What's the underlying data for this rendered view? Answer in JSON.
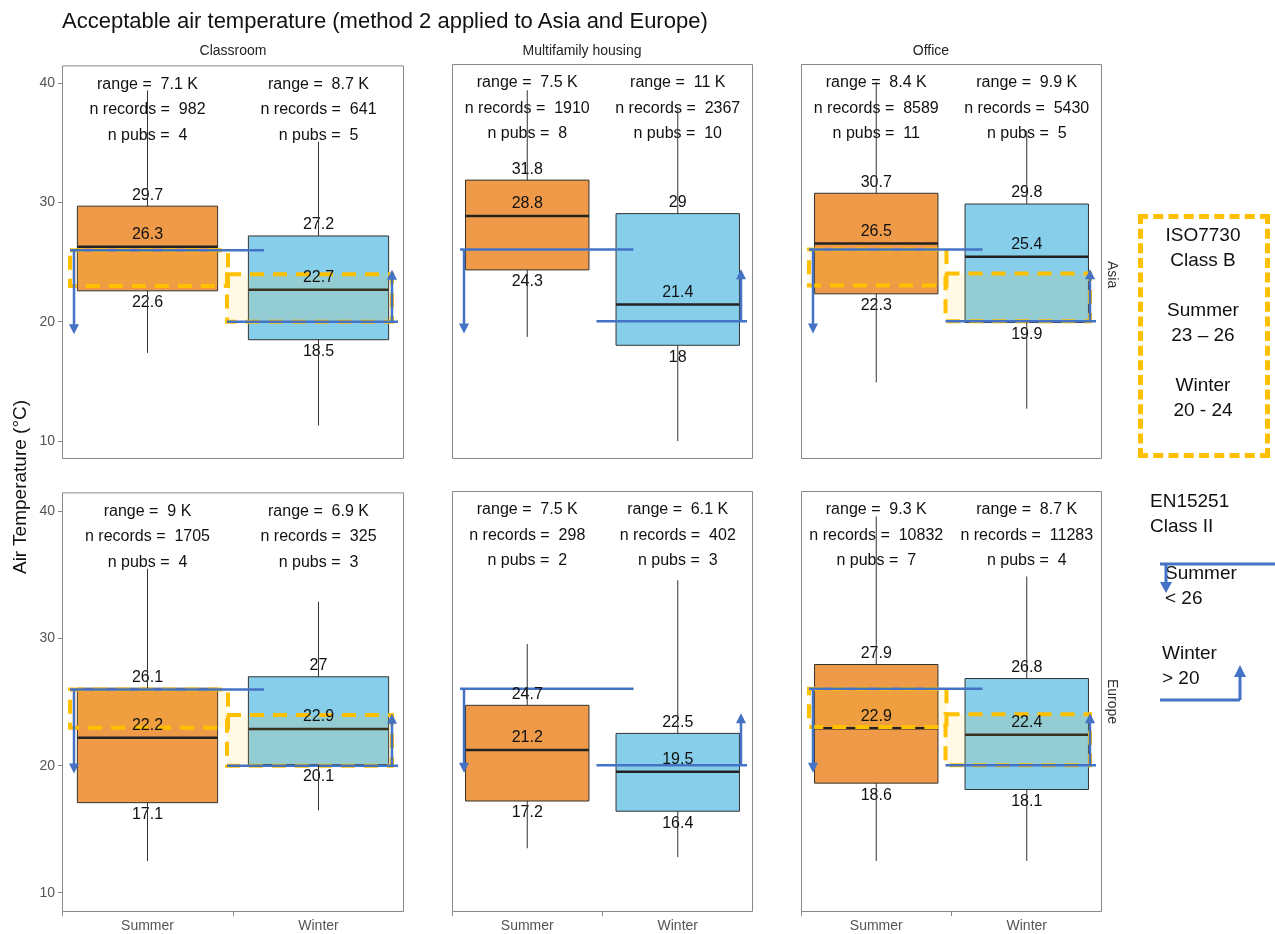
{
  "chart_data": [
    {
      "type": "other",
      "title": "Acceptable air temperature (method 2 applied to Asia and Europe)",
      "ylabel": "Air Temperature (°C)",
      "annotations": [
        "ISO7730\nClass B\n\nSummer\n23 – 26\n\nWinter\n20 - 24",
        "EN15251\nClass II",
        "Summer\n< 26",
        "Winter\n> 20"
      ]
    },
    {
      "type": "box",
      "subtitle": "Classroom",
      "categories": [
        "Summer",
        "Winter"
      ],
      "colors": [
        "#ee9a48",
        "#87ceeb"
      ],
      "boxes": [
        {
          "low": 17.4,
          "q1": 22.6,
          "median": 26.3,
          "q3": 29.7,
          "high": 39.4
        },
        {
          "low": 11.3,
          "q1": 18.5,
          "median": 22.7,
          "q3": 27.2,
          "high": 35.1
        }
      ],
      "annotations": [
        "range =  7.1 K\nn records =  982\nn pubs =  4",
        "range =  8.7 K\nn records =  641\nn pubs =  5",
        {
          "text": "29.7",
          "x": "Summer",
          "y": 29.7
        },
        {
          "text": "26.3",
          "x": "Summer",
          "y": 26.3
        },
        {
          "text": "22.6",
          "x": "Summer",
          "y": 22.6
        },
        {
          "text": "27.2",
          "x": "Winter",
          "y": 27.2
        },
        {
          "text": "22.7",
          "x": "Winter",
          "y": 22.7
        },
        {
          "text": "18.5",
          "x": "Winter",
          "y": 18.5
        }
      ],
      "ref_lines": [
        {
          "axis": "y",
          "value": 26,
          "color": "#4472c4"
        },
        {
          "axis": "y",
          "value": 20,
          "color": "#4472c4"
        }
      ],
      "bands": [
        {
          "axis": "y",
          "from": 23,
          "to": 26,
          "color": "#ffc000"
        },
        {
          "axis": "y",
          "from": 20,
          "to": 24,
          "color": "#ffc000"
        }
      ],
      "ylim": [
        8.5,
        41.5
      ],
      "yticks": [
        10,
        20,
        30,
        40
      ],
      "tick_labels": "y"
    },
    {
      "type": "box",
      "subtitle": "Multifamily housing",
      "categories": [
        "Summer",
        "Winter"
      ],
      "colors": [
        "#ee9a48",
        "#87ceeb"
      ],
      "boxes": [
        {
          "low": 18.7,
          "q1": 24.3,
          "median": 28.8,
          "q3": 31.8,
          "high": 39.3
        },
        {
          "low": 10.0,
          "q1": 18,
          "median": 21.4,
          "q3": 29,
          "high": 37.7
        }
      ],
      "annotations": [
        "range =  7.5 K\nn records =  1910\nn pubs =  8",
        "range =  11 K\nn records =  2367\nn pubs =  10",
        {
          "text": "31.8",
          "x": "Summer",
          "y": 31.8
        },
        {
          "text": "28.8",
          "x": "Summer",
          "y": 28.8
        },
        {
          "text": "24.3",
          "x": "Summer",
          "y": 24.3
        },
        {
          "text": "29",
          "x": "Winter",
          "y": 29
        },
        {
          "text": "21.4",
          "x": "Winter",
          "y": 21.4
        },
        {
          "text": "18",
          "x": "Winter",
          "y": 18
        }
      ],
      "ref_lines": [
        {
          "axis": "y",
          "value": 26,
          "color": "#4472c4"
        },
        {
          "axis": "y",
          "value": 20,
          "color": "#4472c4"
        }
      ],
      "ylim": [
        8.5,
        41.5
      ],
      "yticks": [
        10,
        20,
        30,
        40
      ],
      "tick_labels": false
    },
    {
      "type": "box",
      "subtitle": "Office",
      "y2label": "Asia",
      "categories": [
        "Summer",
        "Winter"
      ],
      "colors": [
        "#ee9a48",
        "#87ceeb"
      ],
      "boxes": [
        {
          "low": 14.9,
          "q1": 22.3,
          "median": 26.5,
          "q3": 30.7,
          "high": 40.0
        },
        {
          "low": 12.7,
          "q1": 19.9,
          "median": 25.4,
          "q3": 29.8,
          "high": 35.9
        }
      ],
      "annotations": [
        "range =  8.4 K\nn records =  8589\nn pubs =  11",
        "range =  9.9 K\nn records =  5430\nn pubs =  5",
        {
          "text": "30.7",
          "x": "Summer",
          "y": 30.7
        },
        {
          "text": "26.5",
          "x": "Summer",
          "y": 26.5
        },
        {
          "text": "22.3",
          "x": "Summer",
          "y": 22.3
        },
        {
          "text": "29.8",
          "x": "Winter",
          "y": 29.8
        },
        {
          "text": "25.4",
          "x": "Winter",
          "y": 25.4
        },
        {
          "text": "19.9",
          "x": "Winter",
          "y": 19.9
        }
      ],
      "ref_lines": [
        {
          "axis": "y",
          "value": 26,
          "color": "#4472c4"
        },
        {
          "axis": "y",
          "value": 20,
          "color": "#4472c4"
        }
      ],
      "bands": [
        {
          "axis": "y",
          "from": 23,
          "to": 26,
          "color": "#ffc000"
        },
        {
          "axis": "y",
          "from": 20,
          "to": 24,
          "color": "#ffc000"
        }
      ],
      "ylim": [
        8.5,
        41.5
      ],
      "yticks": [
        10,
        20,
        30,
        40
      ],
      "tick_labels": false
    },
    {
      "type": "box",
      "categories": [
        "Summer",
        "Winter"
      ],
      "colors": [
        "#ee9a48",
        "#87ceeb"
      ],
      "boxes": [
        {
          "low": 12.5,
          "q1": 17.1,
          "median": 22.2,
          "q3": 26.1,
          "high": 35.5
        },
        {
          "low": 16.5,
          "q1": 20.1,
          "median": 22.9,
          "q3": 27,
          "high": 32.9
        }
      ],
      "annotations": [
        "range =  9 K\nn records =  1705\nn pubs =  4",
        "range =  6.9 K\nn records =  325\nn pubs =  3",
        {
          "text": "26.1",
          "x": "Summer",
          "y": 26.1
        },
        {
          "text": "22.2",
          "x": "Summer",
          "y": 22.2
        },
        {
          "text": "17.1",
          "x": "Summer",
          "y": 17.1
        },
        {
          "text": "27",
          "x": "Winter",
          "y": 27
        },
        {
          "text": "22.9",
          "x": "Winter",
          "y": 22.9
        },
        {
          "text": "20.1",
          "x": "Winter",
          "y": 20.1
        }
      ],
      "ref_lines": [
        {
          "axis": "y",
          "value": 26,
          "color": "#4472c4"
        },
        {
          "axis": "y",
          "value": 20,
          "color": "#4472c4"
        }
      ],
      "bands": [
        {
          "axis": "y",
          "from": 23,
          "to": 26,
          "color": "#ffc000"
        },
        {
          "axis": "y",
          "from": 20,
          "to": 24,
          "color": "#ffc000"
        }
      ],
      "ylim": [
        8.5,
        41.5
      ],
      "yticks": [
        10,
        20,
        30,
        40
      ]
    },
    {
      "type": "box",
      "categories": [
        "Summer",
        "Winter"
      ],
      "colors": [
        "#ee9a48",
        "#87ceeb"
      ],
      "boxes": [
        {
          "low": 13.5,
          "q1": 17.2,
          "median": 21.2,
          "q3": 24.7,
          "high": 29.5
        },
        {
          "low": 12.8,
          "q1": 16.4,
          "median": 19.5,
          "q3": 22.5,
          "high": 34.5
        }
      ],
      "annotations": [
        "range =  7.5 K\nn records =  298\nn pubs =  2",
        "range =  6.1 K\nn records =  402\nn pubs =  3",
        {
          "text": "24.7",
          "x": "Summer",
          "y": 24.7
        },
        {
          "text": "21.2",
          "x": "Summer",
          "y": 21.2
        },
        {
          "text": "17.2",
          "x": "Summer",
          "y": 17.2
        },
        {
          "text": "22.5",
          "x": "Winter",
          "y": 22.5
        },
        {
          "text": "19.5",
          "x": "Winter",
          "y": 19.5
        },
        {
          "text": "16.4",
          "x": "Winter",
          "y": 16.4
        }
      ],
      "ref_lines": [
        {
          "axis": "y",
          "value": 26,
          "color": "#4472c4"
        },
        {
          "axis": "y",
          "value": 20,
          "color": "#4472c4"
        }
      ],
      "ylim": [
        8.5,
        41.5
      ],
      "yticks": [
        10,
        20,
        30,
        40
      ],
      "tick_labels": "x"
    },
    {
      "type": "box",
      "y2label": "Europe",
      "categories": [
        "Summer",
        "Winter"
      ],
      "colors": [
        "#ee9a48",
        "#87ceeb"
      ],
      "boxes": [
        {
          "low": 12.5,
          "q1": 18.6,
          "median": 22.9,
          "q3": 27.9,
          "high": 39.5
        },
        {
          "low": 12.5,
          "q1": 18.1,
          "median": 22.4,
          "q3": 26.8,
          "high": 34.8
        }
      ],
      "annotations": [
        "range =  9.3 K\nn records =  10832\nn pubs =  7",
        "range =  8.7 K\nn records =  11283\nn pubs =  4",
        {
          "text": "27.9",
          "x": "Summer",
          "y": 27.9
        },
        {
          "text": "22.9",
          "x": "Summer",
          "y": 22.9
        },
        {
          "text": "18.6",
          "x": "Summer",
          "y": 18.6
        },
        {
          "text": "26.8",
          "x": "Winter",
          "y": 26.8
        },
        {
          "text": "22.4",
          "x": "Winter",
          "y": 22.4
        },
        {
          "text": "18.1",
          "x": "Winter",
          "y": 18.1
        }
      ],
      "ref_lines": [
        {
          "axis": "y",
          "value": 26,
          "color": "#4472c4"
        },
        {
          "axis": "y",
          "value": 20,
          "color": "#4472c4"
        }
      ],
      "bands": [
        {
          "axis": "y",
          "from": 23,
          "to": 26,
          "color": "#ffc000"
        },
        {
          "axis": "y",
          "from": 20,
          "to": 24,
          "color": "#ffc000"
        }
      ],
      "ylim": [
        8.5,
        41.5
      ],
      "yticks": [
        10,
        20,
        30,
        40
      ],
      "tick_labels": "x"
    }
  ]
}
